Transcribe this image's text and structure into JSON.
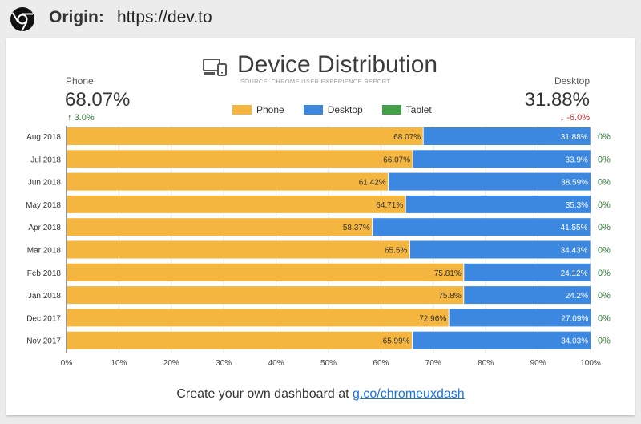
{
  "header": {
    "origin_label": "Origin:",
    "origin_url": "https://dev.to",
    "logo_icon": "chrome-logo-icon"
  },
  "chart_header": {
    "icon": "devices-icon",
    "title": "Device Distribution",
    "subtitle": "SOURCE: CHROME USER EXPERIENCE REPORT"
  },
  "summary": {
    "phone": {
      "label": "Phone",
      "value": "68.07%",
      "change": "3.0%",
      "change_arrow": "↑",
      "color": "#2e7d32"
    },
    "desktop": {
      "label": "Desktop",
      "value": "31.88%",
      "change": "-6.0%",
      "change_arrow": "↓",
      "color": "#c62828"
    }
  },
  "legend": [
    {
      "name": "Phone",
      "color": "#f4b63f"
    },
    {
      "name": "Desktop",
      "color": "#3c88e0"
    },
    {
      "name": "Tablet",
      "color": "#43a047"
    }
  ],
  "chart_data": {
    "type": "bar",
    "orientation": "horizontal",
    "stacked": true,
    "title": "Device Distribution",
    "categories": [
      "Aug 2018",
      "Jul 2018",
      "Jun 2018",
      "May 2018",
      "Apr 2018",
      "Mar 2018",
      "Feb 2018",
      "Jan 2018",
      "Dec 2017",
      "Nov 2017"
    ],
    "series": [
      {
        "name": "Phone",
        "color": "#f4b63f",
        "values": [
          68.07,
          66.07,
          61.42,
          64.71,
          58.37,
          65.5,
          75.81,
          75.8,
          72.96,
          65.99
        ]
      },
      {
        "name": "Desktop",
        "color": "#3c88e0",
        "values": [
          31.88,
          33.9,
          38.59,
          35.3,
          41.55,
          34.43,
          24.12,
          24.2,
          27.09,
          34.03
        ]
      },
      {
        "name": "Tablet",
        "color": "#43a047",
        "values": [
          0,
          0,
          0,
          0,
          0,
          0,
          0,
          0,
          0,
          0
        ]
      }
    ],
    "phone_labels": [
      "68.07%",
      "66.07%",
      "61.42%",
      "64.71%",
      "58.37%",
      "65.5%",
      "75.81%",
      "75.8%",
      "72.96%",
      "65.99%"
    ],
    "desktop_labels": [
      "31.88%",
      "33.9%",
      "38.59%",
      "35.3%",
      "41.55%",
      "34.43%",
      "24.12%",
      "24.2%",
      "27.09%",
      "34.03%"
    ],
    "tablet_labels": [
      "0%",
      "0%",
      "0%",
      "0%",
      "0%",
      "0%",
      "0%",
      "0%",
      "0%",
      "0%"
    ],
    "xlim": [
      0,
      100
    ],
    "xticks": [
      0,
      10,
      20,
      30,
      40,
      50,
      60,
      70,
      80,
      90,
      100
    ],
    "xtick_labels": [
      "0%",
      "10%",
      "20%",
      "30%",
      "40%",
      "50%",
      "60%",
      "70%",
      "80%",
      "90%",
      "100%"
    ],
    "xlabel": "",
    "ylabel": ""
  },
  "footer": {
    "text": "Create your own dashboard at ",
    "link_text": "g.co/chromeuxdash"
  }
}
